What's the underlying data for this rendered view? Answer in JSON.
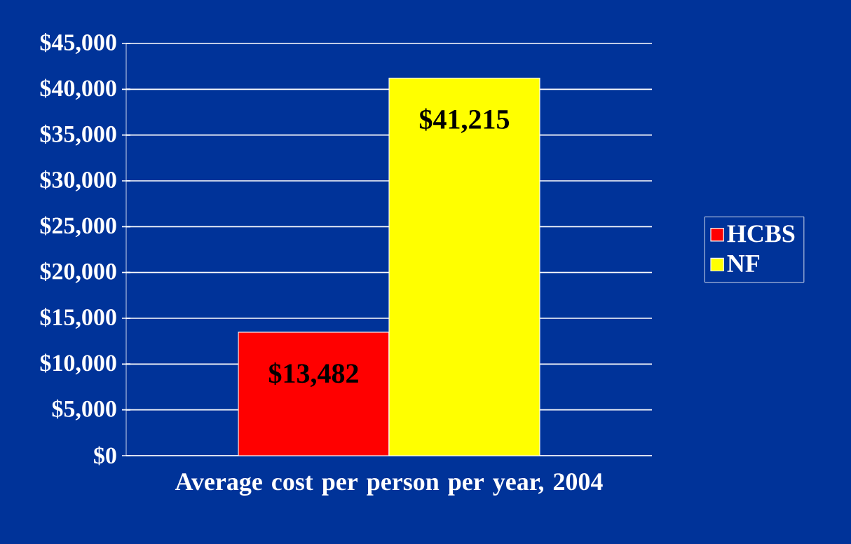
{
  "chart_data": {
    "type": "bar",
    "xlabel": "Average cost per person per year, 2004",
    "categories": [
      null
    ],
    "series": [
      {
        "name": "HCBS",
        "color": "#ff0000",
        "values": [
          13482
        ],
        "value_labels": [
          "$13,482"
        ]
      },
      {
        "name": "NF",
        "color": "#ffff00",
        "values": [
          41215
        ],
        "value_labels": [
          "$41,215"
        ]
      }
    ],
    "ylim": [
      0,
      45000
    ],
    "yticks": [
      {
        "value": 0,
        "label": "$0"
      },
      {
        "value": 5000,
        "label": "$5,000"
      },
      {
        "value": 10000,
        "label": "$10,000"
      },
      {
        "value": 15000,
        "label": "$15,000"
      },
      {
        "value": 20000,
        "label": "$20,000"
      },
      {
        "value": 25000,
        "label": "$25,000"
      },
      {
        "value": 30000,
        "label": "$30,000"
      },
      {
        "value": 35000,
        "label": "$35,000"
      },
      {
        "value": 40000,
        "label": "$40,000"
      },
      {
        "value": 45000,
        "label": "$45,000"
      }
    ],
    "grid": "y",
    "legend": "right"
  }
}
